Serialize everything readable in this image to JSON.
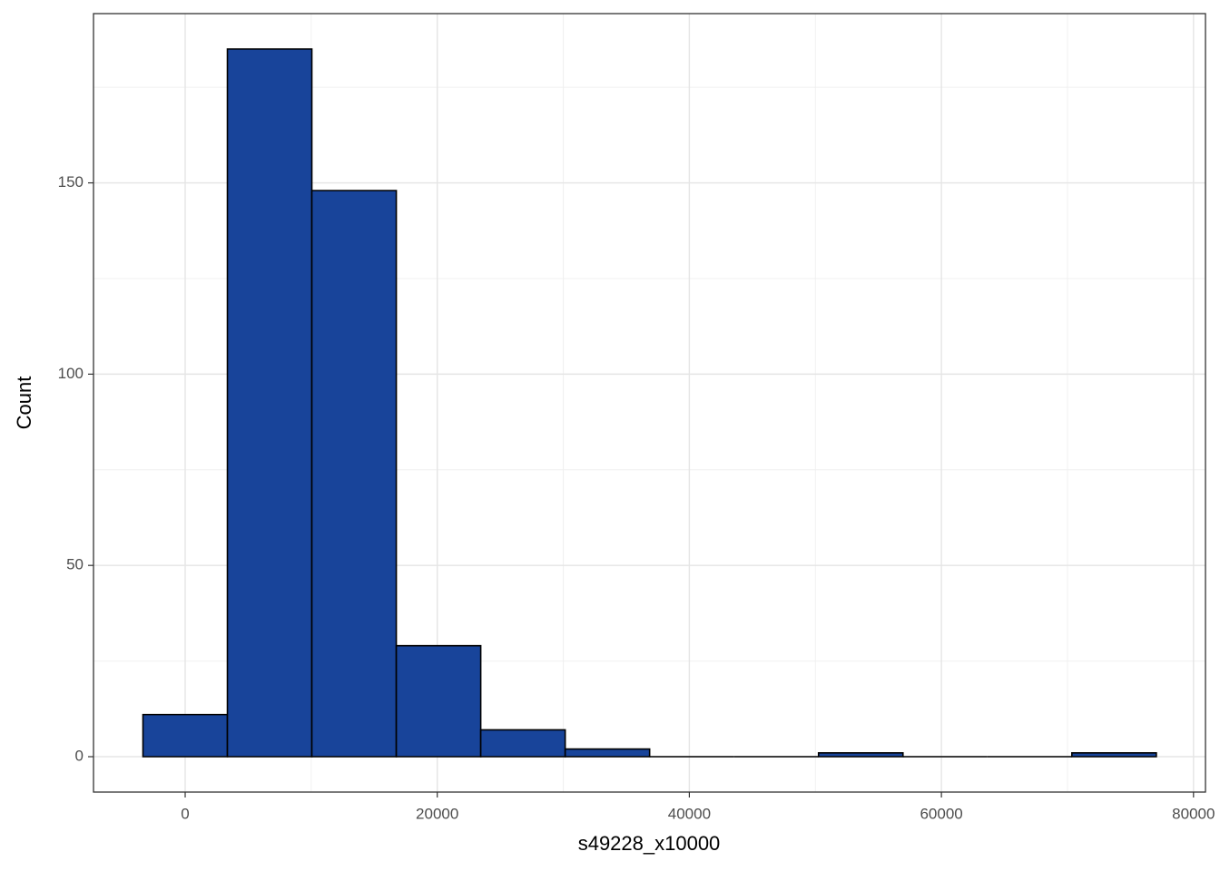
{
  "chart_data": {
    "type": "histogram",
    "x_label": "s49228_x10000",
    "y_label": "Count",
    "bins": [
      -3350,
      3350,
      10050,
      16750,
      23450,
      30150,
      36850,
      43550,
      50250,
      56950,
      63650,
      70350,
      77050
    ],
    "counts": [
      11,
      185,
      148,
      29,
      7,
      2,
      0,
      0,
      1,
      0,
      0,
      1
    ],
    "color": "#18449a",
    "xlim": [
      -7274,
      80950
    ],
    "ylim": [
      -9.25,
      194.25
    ],
    "xticks": [
      0,
      20000,
      40000,
      60000,
      80000
    ],
    "yticks": [
      0,
      50,
      100,
      150
    ],
    "grid": true
  }
}
